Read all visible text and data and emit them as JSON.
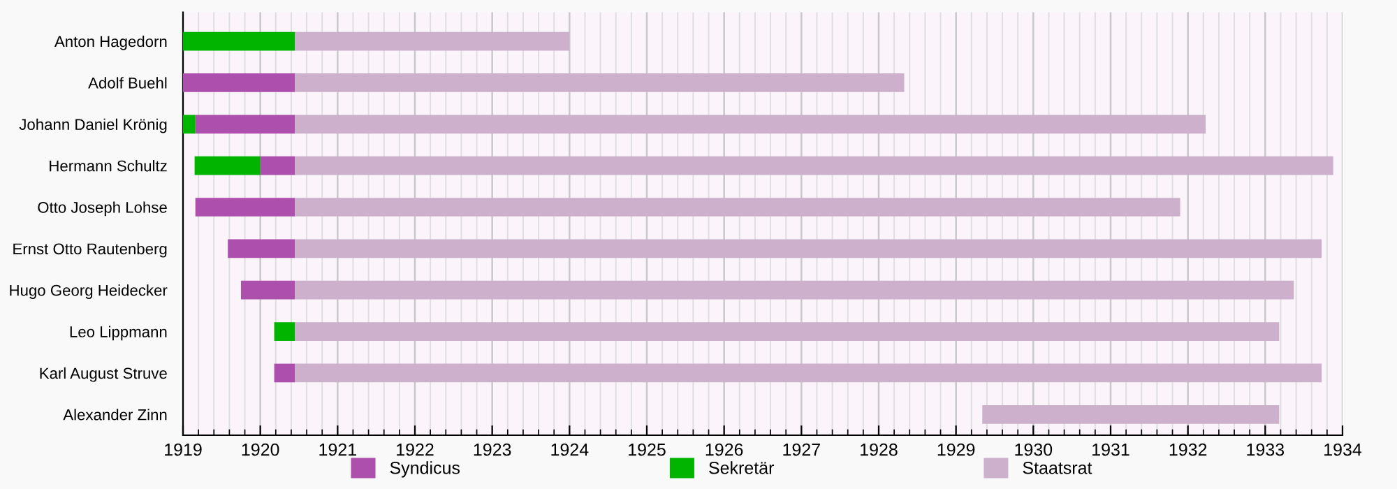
{
  "chart_data": {
    "type": "bar",
    "orientation": "horizontal",
    "categories": [
      "Anton Hagedorn",
      "Adolf Buehl",
      "Johann Daniel Krönig",
      "Hermann Schultz",
      "Otto Joseph Lohse",
      "Ernst Otto Rautenberg",
      "Hugo Georg Heidecker",
      "Leo Lippmann",
      "Karl August Struve",
      "Alexander Zinn"
    ],
    "series": [
      {
        "name": "Syndicus",
        "color": "#ad4fad",
        "base": [
          null,
          1919,
          1919.16,
          1920.0,
          1919.16,
          1919.58,
          1919.75,
          null,
          1920.18,
          null
        ],
        "values": [
          null,
          1.45,
          1.29,
          0.45,
          1.29,
          0.87,
          0.7,
          null,
          0.27,
          null
        ]
      },
      {
        "name": "Sekretär",
        "color": "#00b400",
        "base": [
          1919,
          null,
          1919,
          1919.15,
          null,
          null,
          null,
          1920.18,
          null,
          null
        ],
        "values": [
          1.45,
          null,
          0.16,
          0.85,
          null,
          null,
          null,
          0.27,
          null,
          null
        ]
      },
      {
        "name": "Staatsrat",
        "color": "#ccb0cc",
        "base": [
          1920.45,
          1920.45,
          1920.45,
          1920.45,
          1920.45,
          1920.45,
          1920.45,
          1920.45,
          1920.45,
          1929.34
        ],
        "values": [
          3.55,
          7.88,
          11.78,
          13.43,
          11.45,
          13.28,
          12.92,
          12.73,
          13.28,
          3.84
        ]
      }
    ],
    "xlim": [
      1919,
      1934
    ],
    "xticks": [
      1919,
      1920,
      1921,
      1922,
      1923,
      1924,
      1925,
      1926,
      1927,
      1928,
      1929,
      1930,
      1931,
      1932,
      1933,
      1934
    ],
    "grid": "x",
    "legend": "bottom"
  }
}
